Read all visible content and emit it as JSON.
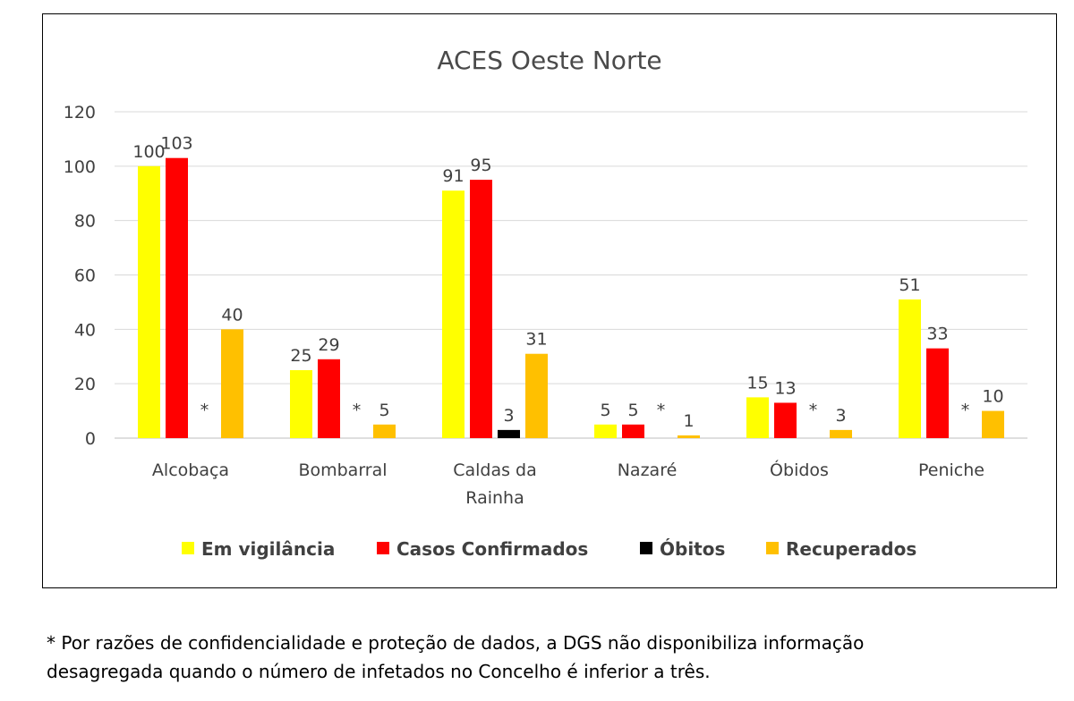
{
  "chart_data": {
    "type": "bar",
    "title": "ACES Oeste Norte",
    "categories": [
      "Alcobaça",
      "Bombarral",
      "Caldas da Rainha",
      "Nazaré",
      "Óbidos",
      "Peniche"
    ],
    "category_lines": [
      [
        "Alcobaça"
      ],
      [
        "Bombarral"
      ],
      [
        "Caldas da",
        "Rainha"
      ],
      [
        "Nazaré"
      ],
      [
        "Óbidos"
      ],
      [
        "Peniche"
      ]
    ],
    "series": [
      {
        "name": "Em vigilância",
        "color": "#FFFF00",
        "values": [
          100,
          25,
          91,
          5,
          15,
          51
        ],
        "labels": [
          "100",
          "25",
          "91",
          "5",
          "15",
          "51"
        ]
      },
      {
        "name": "Casos Confirmados",
        "color": "#FF0000",
        "values": [
          103,
          29,
          95,
          5,
          13,
          33
        ],
        "labels": [
          "103",
          "29",
          "95",
          "5",
          "13",
          "33"
        ]
      },
      {
        "name": "Óbitos",
        "color": "#000000",
        "values": [
          0,
          0,
          3,
          0,
          0,
          0
        ],
        "labels": [
          "*",
          "*",
          "3",
          "*",
          "*",
          "*"
        ]
      },
      {
        "name": "Recuperados",
        "color": "#FFC000",
        "values": [
          40,
          5,
          31,
          1,
          3,
          10
        ],
        "labels": [
          "40",
          "5",
          "31",
          "1",
          "3",
          "10"
        ]
      }
    ],
    "ylim": [
      0,
      120
    ],
    "yticks": [
      0,
      20,
      40,
      60,
      80,
      100,
      120
    ],
    "grid": true,
    "legend_position": "bottom"
  },
  "footnote": {
    "line1": "* Por razões de confidencialidade e proteção de dados, a DGS não disponibiliza informação",
    "line2": "desagregada quando o número de infetados no Concelho é inferior a três."
  }
}
